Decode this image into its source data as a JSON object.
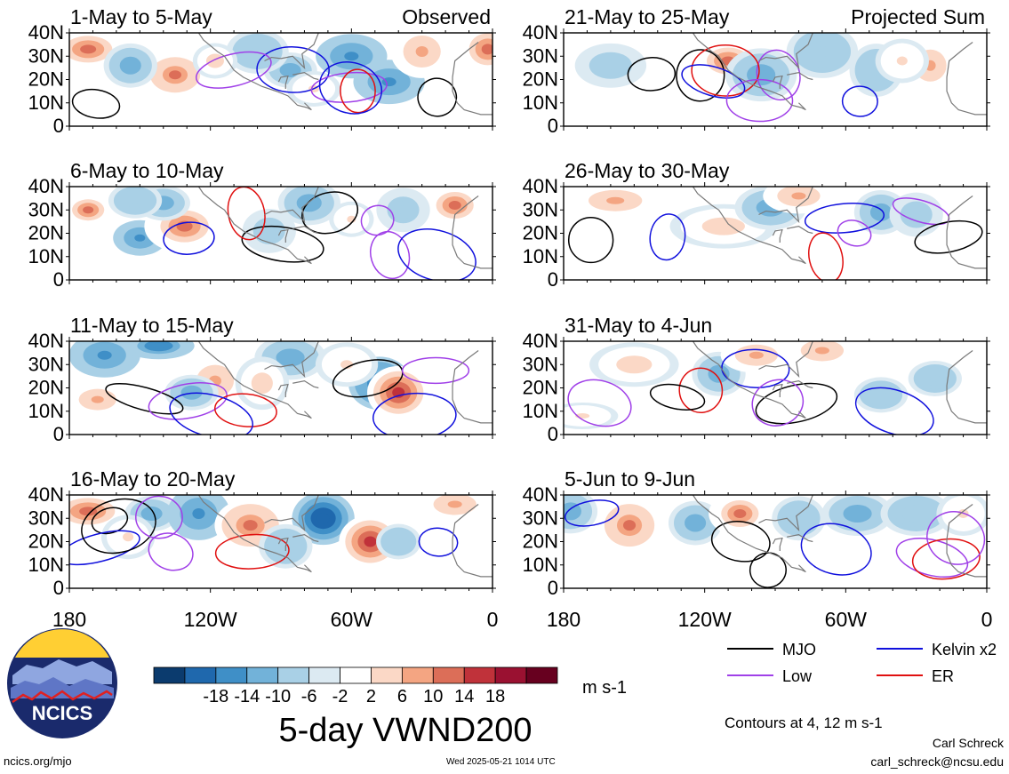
{
  "chart_data": {
    "type": "heatmap",
    "title": "5-day VWND200",
    "units": "m s-1",
    "contour_note": "Contours at 4, 12 m s-1",
    "observed_label": "Observed",
    "projected_label": "Projected Sum",
    "x_ticks": [
      "180",
      "120W",
      "60W",
      "0"
    ],
    "y_ticks": [
      "40N",
      "30N",
      "20N",
      "10N",
      "0"
    ],
    "colorbar": {
      "ticks": [
        "-18",
        "-14",
        "-10",
        "-6",
        "-2",
        "2",
        "6",
        "10",
        "14",
        "18"
      ],
      "colors": [
        "#0b3b6e",
        "#1f68ad",
        "#3f8fc7",
        "#72b2d9",
        "#a9d0e6",
        "#dceaf2",
        "#ffffff",
        "#fbd8c6",
        "#f4a582",
        "#dc6e58",
        "#c0323a",
        "#9a1131",
        "#67001f"
      ]
    },
    "legend": [
      {
        "name": "MJO",
        "color": "#000000"
      },
      {
        "name": "Kelvin x2",
        "color": "#1010dd"
      },
      {
        "name": "Low",
        "color": "#a040e8"
      },
      {
        "name": "ER",
        "color": "#e01010"
      }
    ],
    "panels": [
      {
        "title": "1-May to 5-May",
        "group": "observed",
        "blobs": [
          [
            172,
            33,
            9,
            5,
            14
          ],
          [
            135,
            22,
            7,
            5,
            16
          ],
          [
            86,
            24,
            6,
            4,
            -8
          ],
          [
            100,
            32,
            7,
            5,
            -6
          ],
          [
            60,
            30,
            8,
            5,
            -12
          ],
          [
            44,
            19,
            8,
            5,
            -12
          ],
          [
            30,
            32,
            7,
            6,
            10
          ],
          [
            2,
            33,
            7,
            6,
            14
          ],
          [
            154,
            26,
            6,
            5,
            -8
          ],
          [
            118,
            28,
            5,
            4,
            8
          ],
          [
            76,
            16,
            6,
            4,
            6
          ]
        ]
      },
      {
        "title": "21-May to 25-May",
        "group": "projected",
        "blobs": [
          [
            110,
            28,
            8,
            5,
            14
          ],
          [
            96,
            22,
            8,
            6,
            -8
          ],
          [
            70,
            32,
            8,
            6,
            -6
          ],
          [
            47,
            24,
            6,
            6,
            -6
          ],
          [
            24,
            26,
            6,
            6,
            10
          ],
          [
            160,
            26,
            8,
            5,
            -4
          ],
          [
            36,
            28,
            6,
            5,
            6
          ]
        ]
      },
      {
        "title": "6-May to 10-May",
        "group": "observed",
        "blobs": [
          [
            172,
            30,
            6,
            4,
            14
          ],
          [
            150,
            18,
            6,
            4,
            -12
          ],
          [
            131,
            23,
            9,
            6,
            14
          ],
          [
            140,
            33,
            6,
            4,
            -10
          ],
          [
            78,
            33,
            7,
            5,
            -10
          ],
          [
            16,
            32,
            7,
            5,
            14
          ],
          [
            152,
            34,
            6,
            4,
            -6
          ],
          [
            60,
            26,
            5,
            4,
            6
          ],
          [
            95,
            21,
            6,
            5,
            -4
          ],
          [
            38,
            30,
            6,
            5,
            -4
          ]
        ]
      },
      {
        "title": "26-May to 30-May",
        "group": "projected",
        "blobs": [
          [
            158,
            34,
            10,
            4,
            12
          ],
          [
            112,
            23,
            12,
            5,
            8
          ],
          [
            92,
            31,
            8,
            5,
            -8
          ],
          [
            45,
            29,
            6,
            5,
            -8
          ],
          [
            80,
            36,
            8,
            4,
            10
          ],
          [
            30,
            28,
            6,
            5,
            -4
          ]
        ]
      },
      {
        "title": "11-May to 15-May",
        "group": "observed",
        "blobs": [
          [
            165,
            34,
            8,
            5,
            -12
          ],
          [
            142,
            38,
            8,
            3,
            -14
          ],
          [
            118,
            23,
            7,
            6,
            12
          ],
          [
            86,
            33,
            8,
            5,
            -8
          ],
          [
            48,
            22,
            7,
            6,
            -16
          ],
          [
            40,
            18,
            7,
            6,
            18
          ],
          [
            168,
            15,
            7,
            4,
            12
          ],
          [
            128,
            18,
            6,
            4,
            -8
          ],
          [
            98,
            22,
            6,
            6,
            8
          ],
          [
            62,
            30,
            7,
            5,
            6
          ]
        ]
      },
      {
        "title": "31-May to 4-Jun",
        "group": "projected",
        "blobs": [
          [
            150,
            30,
            10,
            5,
            8
          ],
          [
            114,
            26,
            6,
            5,
            -8
          ],
          [
            98,
            34,
            8,
            4,
            12
          ],
          [
            70,
            36,
            8,
            4,
            10
          ],
          [
            45,
            17,
            6,
            4,
            -6
          ],
          [
            22,
            24,
            6,
            4,
            -6
          ],
          [
            172,
            8,
            8,
            3,
            6
          ]
        ]
      },
      {
        "title": "16-May to 20-May",
        "group": "observed",
        "blobs": [
          [
            172,
            33,
            10,
            5,
            14
          ],
          [
            145,
            32,
            6,
            4,
            -8
          ],
          [
            125,
            32,
            7,
            6,
            -12
          ],
          [
            103,
            27,
            8,
            6,
            16
          ],
          [
            72,
            30,
            7,
            6,
            -18
          ],
          [
            52,
            20,
            7,
            6,
            18
          ],
          [
            40,
            20,
            5,
            4,
            -6
          ],
          [
            155,
            22,
            6,
            5,
            6
          ],
          [
            88,
            18,
            6,
            5,
            -6
          ],
          [
            16,
            36,
            8,
            4,
            12
          ]
        ]
      },
      {
        "title": "5-Jun to 9-Jun",
        "group": "projected",
        "blobs": [
          [
            177,
            33,
            6,
            5,
            -10
          ],
          [
            152,
            27,
            7,
            6,
            16
          ],
          [
            124,
            28,
            6,
            5,
            -10
          ],
          [
            105,
            32,
            7,
            5,
            14
          ],
          [
            80,
            30,
            6,
            5,
            -6
          ],
          [
            55,
            32,
            8,
            5,
            -8
          ],
          [
            30,
            32,
            8,
            5,
            -6
          ],
          [
            10,
            32,
            6,
            5,
            6
          ]
        ]
      }
    ]
  },
  "footer": {
    "logo_text": "NCICS",
    "url": "ncics.org/mjo",
    "timestamp": "Wed 2025-05-21 1014 UTC",
    "author": "Carl Schreck",
    "email": "carl_schreck@ncsu.edu"
  }
}
